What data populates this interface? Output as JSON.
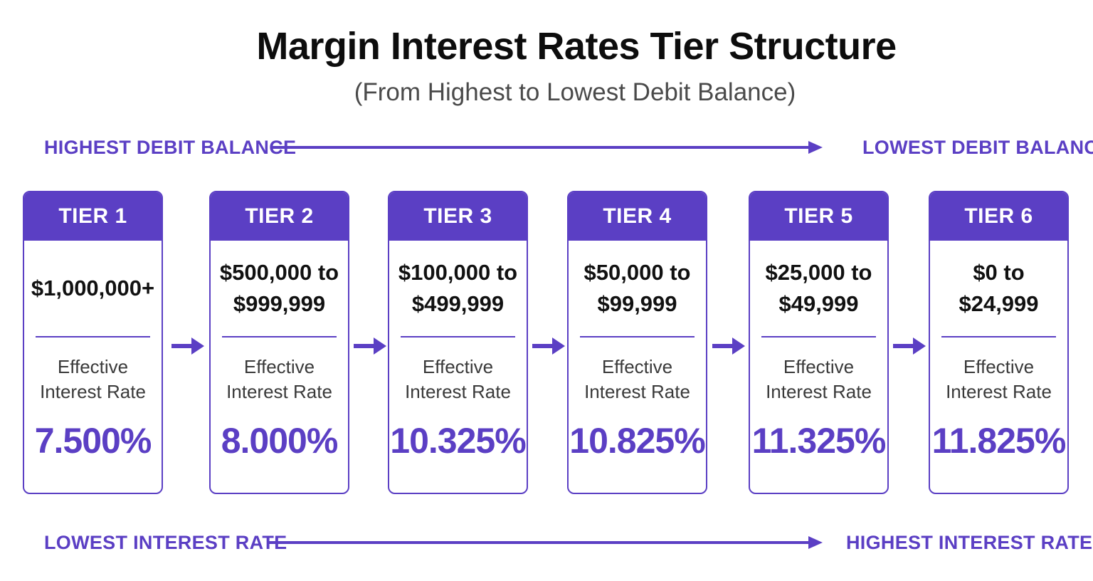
{
  "header": {
    "title": "Margin Interest Rates Tier Structure",
    "subtitle": "(From Highest to Lowest Debit Balance)"
  },
  "flows": {
    "top": {
      "left_label": "HIGHEST DEBIT BALANCE",
      "right_label": "LOWEST DEBIT BALANCE"
    },
    "bottom": {
      "left_label": "LOWEST INTEREST RATE",
      "right_label": "HIGHEST INTEREST RATE"
    }
  },
  "colors": {
    "accent": "#5b3fc4",
    "text": "#111111",
    "muted": "#4a4a4a"
  },
  "tiers": [
    {
      "label": "TIER 1",
      "range_line1": "$1,000,000+",
      "range_line2": "",
      "rate_label_line1": "Effective",
      "rate_label_line2": "Interest Rate",
      "rate": "7.500%"
    },
    {
      "label": "TIER 2",
      "range_line1": "$500,000 to",
      "range_line2": "$999,999",
      "rate_label_line1": "Effective",
      "rate_label_line2": "Interest Rate",
      "rate": "8.000%"
    },
    {
      "label": "TIER 3",
      "range_line1": "$100,000 to",
      "range_line2": "$499,999",
      "rate_label_line1": "Effective",
      "rate_label_line2": "Interest Rate",
      "rate": "10.325%"
    },
    {
      "label": "TIER 4",
      "range_line1": "$50,000 to",
      "range_line2": "$99,999",
      "rate_label_line1": "Effective",
      "rate_label_line2": "Interest Rate",
      "rate": "10.825%"
    },
    {
      "label": "TIER 5",
      "range_line1": "$25,000 to",
      "range_line2": "$49,999",
      "rate_label_line1": "Effective",
      "rate_label_line2": "Interest Rate",
      "rate": "11.325%"
    },
    {
      "label": "TIER 6",
      "range_line1": "$0 to",
      "range_line2": "$24,999",
      "rate_label_line1": "Effective",
      "rate_label_line2": "Interest Rate",
      "rate": "11.825%"
    }
  ]
}
